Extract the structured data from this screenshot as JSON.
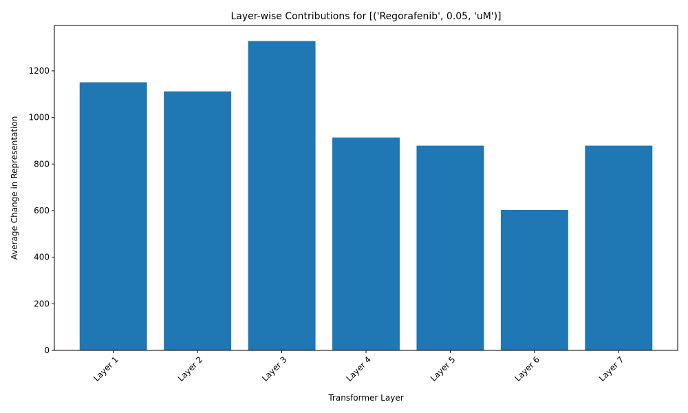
{
  "chart_data": {
    "type": "bar",
    "title": "Layer-wise Contributions for [('Regorafenib', 0.05, 'uM')]",
    "xlabel": "Transformer Layer",
    "ylabel": "Average Change in Representation",
    "categories": [
      "Layer 1",
      "Layer 2",
      "Layer 3",
      "Layer 4",
      "Layer 5",
      "Layer 6",
      "Layer 7"
    ],
    "values": [
      1151,
      1112,
      1328,
      914,
      879,
      603,
      879
    ],
    "ylim": [
      0,
      1395
    ],
    "yticks": [
      0,
      200,
      400,
      600,
      800,
      1000,
      1200
    ],
    "bar_color": "#1f77b4",
    "grid": false,
    "legend": "none"
  }
}
